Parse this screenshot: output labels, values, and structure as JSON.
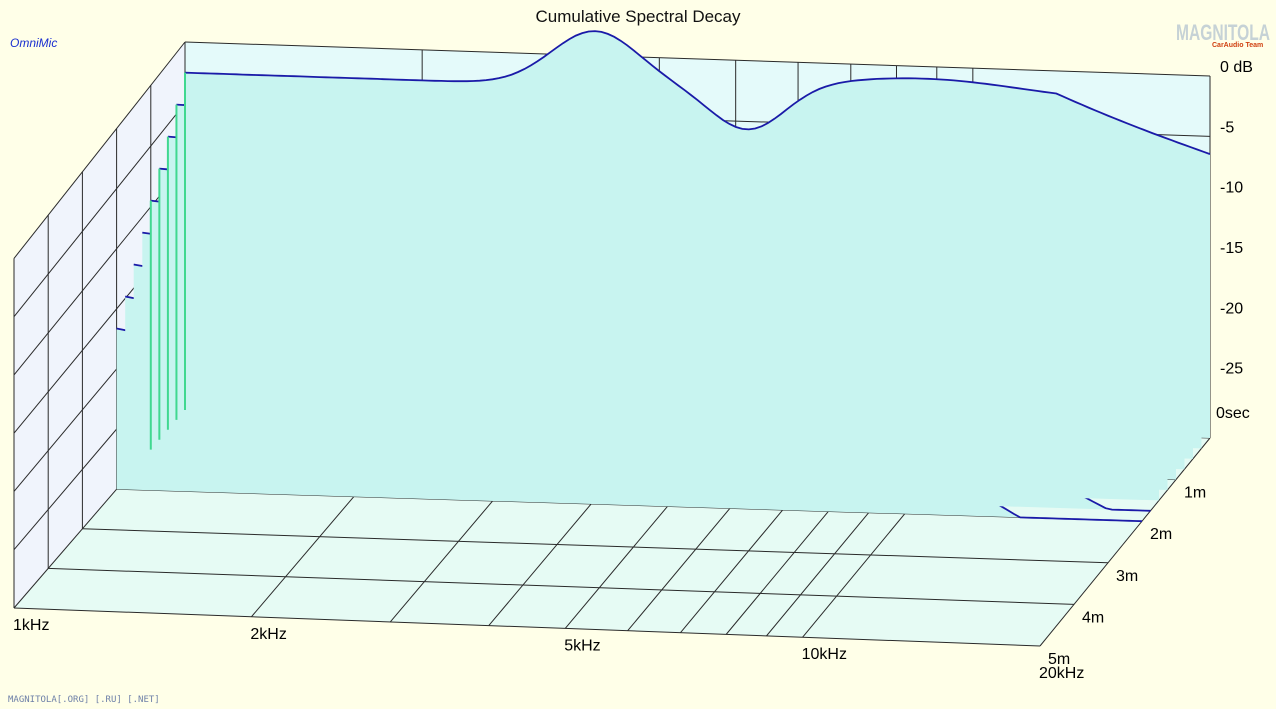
{
  "chart_data": {
    "type": "waterfall",
    "title": "Cumulative Spectral Decay",
    "source_label": "OmniMic",
    "x_axis": {
      "scale": "log",
      "range_hz": [
        1000,
        20000
      ],
      "tick_labels": [
        "1kHz",
        "2kHz",
        "5kHz",
        "10kHz",
        "20kHz"
      ],
      "tick_values_hz": [
        1000,
        2000,
        5000,
        10000,
        20000
      ]
    },
    "z_axis": {
      "unit": "dB",
      "range": [
        -30,
        0
      ],
      "tick_labels": [
        "0 dB",
        "-5",
        "-10",
        "-15",
        "-20",
        "-25"
      ],
      "tick_values": [
        0,
        -5,
        -10,
        -15,
        -20,
        -25
      ]
    },
    "time_axis": {
      "range_ms": [
        0,
        5
      ],
      "tick_labels": [
        "0sec",
        "1m",
        "2m",
        "3m",
        "4m",
        "5m"
      ],
      "tick_values_ms": [
        0,
        1,
        2,
        3,
        4,
        5
      ]
    },
    "grid": true,
    "fill_color": "#c8f4f0",
    "line_color": "#1a1aa8",
    "wall_color": "#e4fafa",
    "floor_color": "#e6fbf4"
  },
  "watermark": {
    "logo_text": "MAGNITOLA",
    "logo_subtext": "CarAudio Team",
    "footer_text": "MAGNITOLA[.ORG] [.RU] [.NET]"
  }
}
